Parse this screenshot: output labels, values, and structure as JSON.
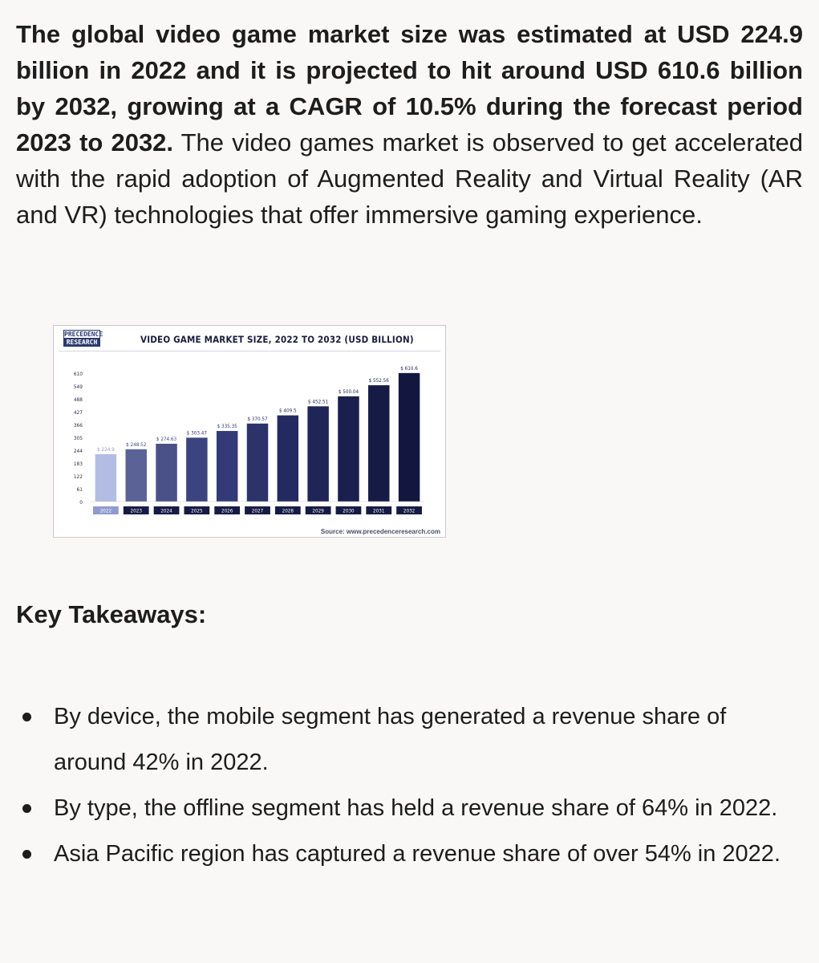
{
  "intro": {
    "bold": "The global video game market size was estimated at USD 224.9 billion in 2022 and it is projected to hit around USD 610.6 billion by 2032, growing at a CAGR of 10.5% during the forecast period 2023 to 2032.",
    "normal": " The video games market is observed to get accelerated with the rapid adoption of Augmented Reality and Virtual Reality (AR and VR) technologies that offer immersive gaming experience."
  },
  "logo": {
    "line1": "PRECEDENCE",
    "line2": "RESEARCH"
  },
  "chart_data": {
    "type": "bar",
    "title": "VIDEO GAME MARKET SIZE, 2022 TO 2032 (USD BILLION)",
    "categories": [
      "2022",
      "2023",
      "2024",
      "2025",
      "2026",
      "2027",
      "2028",
      "2029",
      "2030",
      "2031",
      "2032"
    ],
    "values": [
      224.9,
      248.52,
      274.63,
      303.47,
      335.35,
      370.57,
      409.5,
      452.51,
      500.04,
      552.56,
      610.6
    ],
    "value_labels": [
      "$ 224.9",
      "$ 248.52",
      "$ 274.63",
      "$ 303.47",
      "$ 335.35",
      "$ 370.57",
      "$ 409.5",
      "$ 452.51",
      "$ 500.04",
      "$ 552.56",
      "$ 610.6"
    ],
    "yticks": [
      0,
      61,
      122,
      183,
      244,
      305,
      366,
      427,
      488,
      549,
      610
    ],
    "ylim": [
      0,
      610
    ],
    "bar_colors": [
      "#b3bde3",
      "#5b6396",
      "#4a5189",
      "#3c4480",
      "#323a78",
      "#2c3369",
      "#232a60",
      "#1f2556",
      "#1a1f4e",
      "#161b46",
      "#131740"
    ],
    "label_colors": [
      "#8f9ad0",
      "#3f4780",
      "#3f4780",
      "#2e3570",
      "#2e3570",
      "#252c62",
      "#252c62",
      "#1c2254",
      "#1c2254",
      "#181d4a",
      "#181d4a"
    ],
    "grid": false,
    "source": "Source: www.precedenceresearch.com"
  },
  "takeaways": {
    "heading": "Key Takeaways:",
    "items": [
      "By device, the mobile segment has generated a revenue share of around 42% in 2022.",
      "By type, the offline segment has held a revenue share of 64% in 2022.",
      "Asia Pacific region has captured a revenue share of over 54% in 2022."
    ]
  }
}
